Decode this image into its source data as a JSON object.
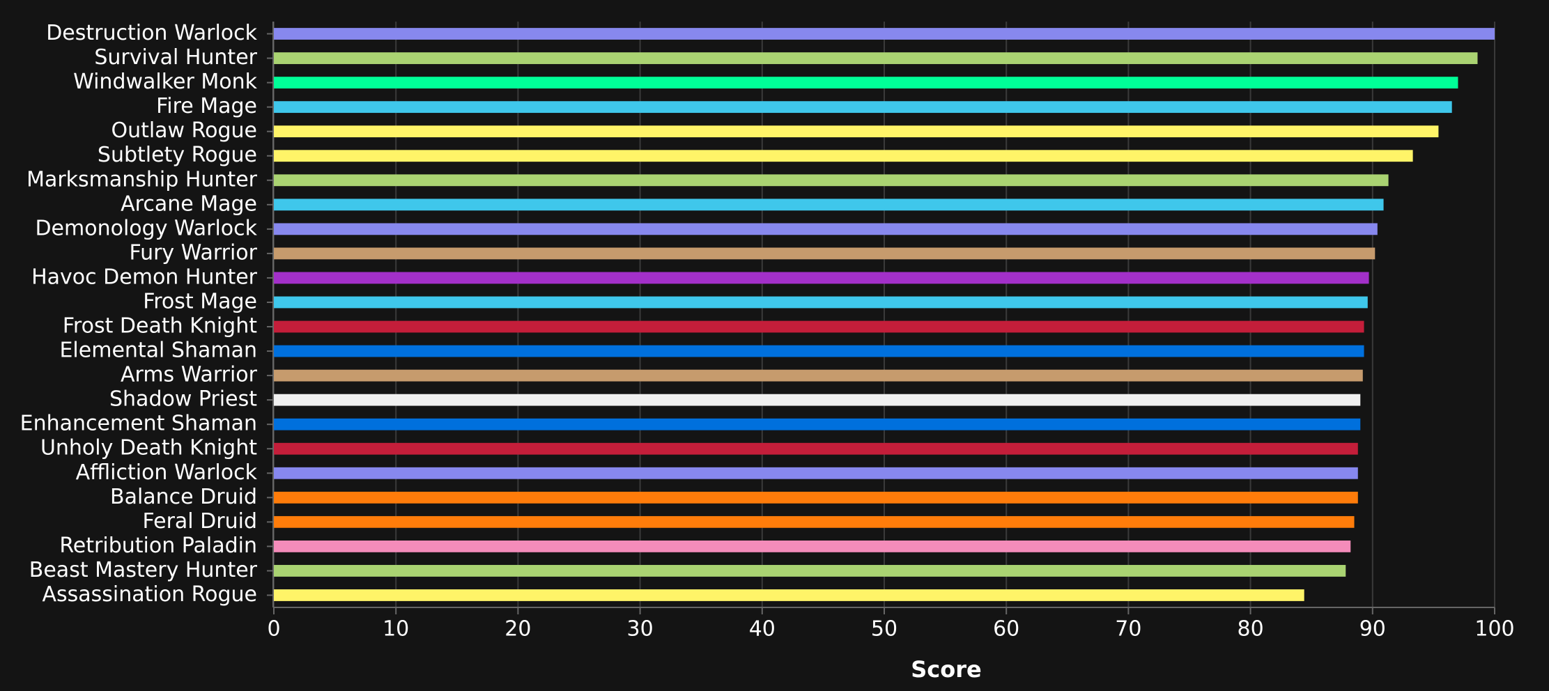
{
  "chart_data": {
    "type": "hbar",
    "xlabel": "Score",
    "categories": [
      "Destruction Warlock",
      "Survival Hunter",
      "Windwalker Monk",
      "Fire Mage",
      "Outlaw Rogue",
      "Subtlety Rogue",
      "Marksmanship Hunter",
      "Arcane Mage",
      "Demonology Warlock",
      "Fury Warrior",
      "Havoc Demon Hunter",
      "Frost Mage",
      "Frost Death Knight",
      "Elemental Shaman",
      "Arms Warrior",
      "Shadow Priest",
      "Enhancement Shaman",
      "Unholy Death Knight",
      "Affliction Warlock",
      "Balance Druid",
      "Feral Druid",
      "Retribution Paladin",
      "Beast Mastery Hunter",
      "Assassination Rogue"
    ],
    "values": [
      100,
      98.6,
      97.0,
      96.5,
      95.4,
      93.3,
      91.3,
      90.9,
      90.4,
      90.2,
      89.7,
      89.6,
      89.3,
      89.3,
      89.2,
      89.0,
      89.0,
      88.8,
      88.8,
      88.8,
      88.5,
      88.2,
      87.8,
      84.4
    ],
    "colors": [
      "#8788ee",
      "#aad372",
      "#00ff98",
      "#3fc7eb",
      "#fff468",
      "#fff468",
      "#aad372",
      "#3fc7eb",
      "#8788ee",
      "#c69b6d",
      "#a330c9",
      "#3fc7eb",
      "#c41e3a",
      "#0070dd",
      "#c69b6d",
      "#f0f0f0",
      "#0070dd",
      "#c41e3a",
      "#8788ee",
      "#ff7c0a",
      "#ff7c0a",
      "#f48cba",
      "#aad372",
      "#fff468"
    ],
    "xlim": [
      0,
      100
    ],
    "xticks": [
      0,
      10,
      20,
      30,
      40,
      50,
      60,
      70,
      80,
      90,
      100
    ],
    "grid": true
  }
}
